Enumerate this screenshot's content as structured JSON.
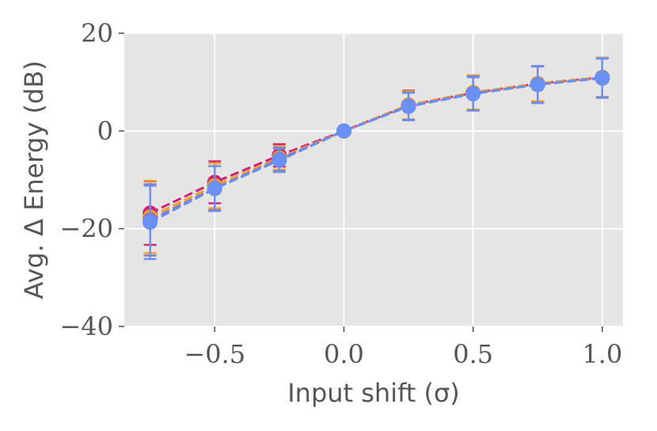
{
  "chart_data": {
    "type": "line",
    "xlabel": "Input shift (σ)",
    "ylabel": "Avg. Δ Energy (dB)",
    "xlim": [
      -0.85,
      1.08
    ],
    "ylim": [
      -40,
      20
    ],
    "xticks": [
      -0.5,
      0.0,
      0.5,
      1.0
    ],
    "xtick_labels": [
      "−0.5",
      "0.0",
      "0.5",
      "1.0"
    ],
    "yticks": [
      -40,
      -20,
      0,
      20
    ],
    "ytick_labels": [
      "−40",
      "−20",
      "0",
      "20"
    ],
    "grid": true,
    "background": "#e5e5e5",
    "x": [
      -0.75,
      -0.5,
      -0.25,
      0.0,
      0.25,
      0.5,
      0.75,
      1.0
    ],
    "series": [
      {
        "color": "#cc2277",
        "linestyle": "dashed",
        "values": [
          -16.8,
          -10.5,
          -5.0,
          0.0,
          5.3,
          7.8,
          9.7,
          11.0
        ],
        "errors": [
          6.5,
          4.3,
          2.3,
          0.0,
          3.0,
          3.6,
          3.6,
          4.0
        ]
      },
      {
        "color": "#f5a020",
        "linestyle": "dashed",
        "values": [
          -17.6,
          -11.2,
          -5.5,
          0.0,
          5.3,
          7.9,
          9.7,
          11.0
        ],
        "errors": [
          7.4,
          4.6,
          2.4,
          0.0,
          2.9,
          3.5,
          3.6,
          4.0
        ]
      },
      {
        "color": "#8877cc",
        "linestyle": "dashed",
        "values": [
          -18.2,
          -11.7,
          -5.8,
          0.0,
          5.1,
          7.7,
          9.5,
          10.8
        ],
        "errors": [
          7.3,
          4.5,
          2.4,
          0.0,
          2.8,
          3.5,
          3.7,
          4.0
        ]
      },
      {
        "color": "#6a8ff5",
        "linestyle": "dashed",
        "values": [
          -18.7,
          -11.8,
          -6.0,
          0.0,
          5.0,
          7.6,
          9.5,
          10.9
        ],
        "errors": [
          7.5,
          4.6,
          2.4,
          0.0,
          2.8,
          3.4,
          3.8,
          4.0
        ]
      }
    ]
  }
}
